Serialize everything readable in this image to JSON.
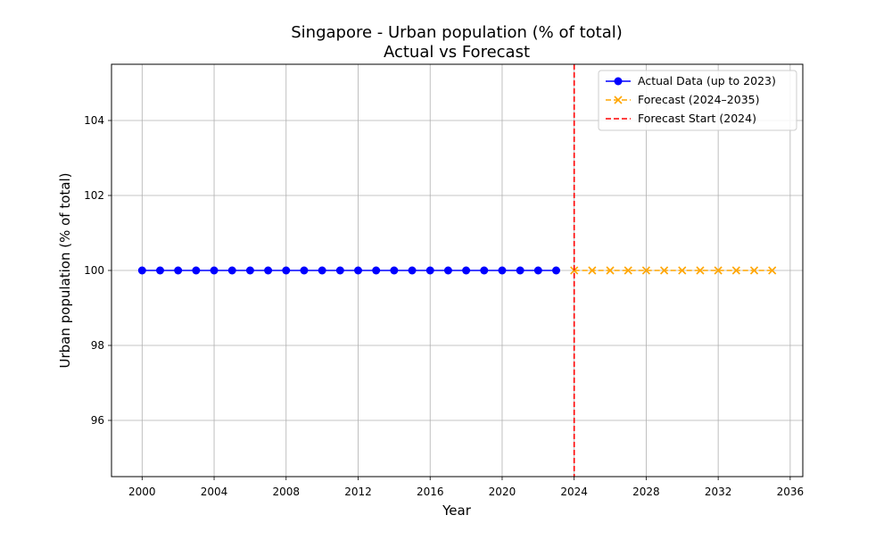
{
  "chart_data": {
    "type": "line",
    "title": "Singapore - Urban population (% of total)",
    "subtitle": "Actual vs Forecast",
    "xlabel": "Year",
    "ylabel": "Urban population (% of total)",
    "xlim": [
      1998.3,
      2036.7
    ],
    "ylim": [
      94.5,
      105.5
    ],
    "xticks": [
      2000,
      2004,
      2008,
      2012,
      2016,
      2020,
      2024,
      2028,
      2032,
      2036
    ],
    "yticks": [
      96,
      98,
      100,
      102,
      104
    ],
    "grid": true,
    "legend_position": "top-right",
    "series": [
      {
        "name": "Actual Data (up to 2023)",
        "color": "#0000ff",
        "style": "solid",
        "marker": "circle",
        "x": [
          2000,
          2001,
          2002,
          2003,
          2004,
          2005,
          2006,
          2007,
          2008,
          2009,
          2010,
          2011,
          2012,
          2013,
          2014,
          2015,
          2016,
          2017,
          2018,
          2019,
          2020,
          2021,
          2022,
          2023
        ],
        "y": [
          100,
          100,
          100,
          100,
          100,
          100,
          100,
          100,
          100,
          100,
          100,
          100,
          100,
          100,
          100,
          100,
          100,
          100,
          100,
          100,
          100,
          100,
          100,
          100
        ]
      },
      {
        "name": "Forecast (2024–2035)",
        "color": "#ffa500",
        "style": "dashed",
        "marker": "x",
        "x": [
          2024,
          2025,
          2026,
          2027,
          2028,
          2029,
          2030,
          2031,
          2032,
          2033,
          2034,
          2035
        ],
        "y": [
          100,
          100,
          100,
          100,
          100,
          100,
          100,
          100,
          100,
          100,
          100,
          100
        ]
      }
    ],
    "vertical_line": {
      "name": "Forecast Start (2024)",
      "x": 2024,
      "color": "#ff0000",
      "style": "dashed"
    }
  }
}
